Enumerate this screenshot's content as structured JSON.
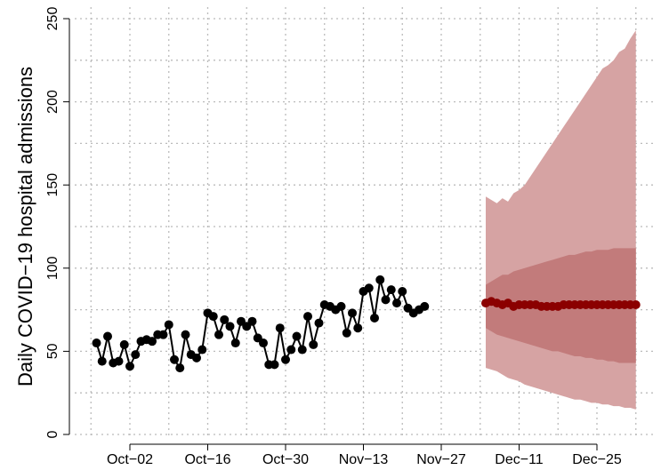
{
  "chart_data": {
    "type": "line",
    "y_label": "Daily COVID−19 hospital admissions",
    "categories": [
      null,
      null,
      null,
      null,
      null,
      null,
      "Oct−02",
      null,
      null,
      null,
      null,
      null,
      null,
      null,
      null,
      null,
      null,
      null,
      null,
      null,
      "Oct−16",
      null,
      null,
      null,
      null,
      null,
      null,
      null,
      null,
      null,
      null,
      null,
      null,
      null,
      "Oct−30",
      null,
      null,
      null,
      null,
      null,
      null,
      null,
      null,
      null,
      null,
      null,
      null,
      null,
      "Nov−13",
      null,
      null,
      null,
      null,
      null,
      null,
      null,
      null,
      null,
      null,
      null,
      null,
      null,
      "Nov−27",
      null,
      null,
      null,
      null,
      null,
      null,
      null,
      null,
      null,
      null,
      null,
      null,
      null,
      "Dec−11",
      null,
      null,
      null,
      null,
      null,
      null,
      null,
      null,
      null,
      null,
      null,
      null,
      null,
      "Dec−25",
      null,
      null,
      null,
      null,
      null,
      null,
      null
    ],
    "series": [
      {
        "color": "#000000",
        "values": [
          55,
          44,
          59,
          43,
          44,
          54,
          41,
          48,
          56,
          57,
          56,
          60,
          60,
          66,
          45,
          40,
          60,
          48,
          46,
          51,
          73,
          71,
          60,
          69,
          65,
          55,
          68,
          65,
          68,
          58,
          55,
          42,
          42,
          64,
          45,
          51,
          59,
          51,
          71,
          54,
          67,
          78,
          77,
          75,
          77,
          61,
          73,
          64,
          86,
          88,
          70,
          93,
          81,
          87,
          79,
          86,
          76,
          73,
          75,
          77,
          null,
          null,
          null,
          null,
          null,
          null,
          null,
          null,
          null,
          null,
          null,
          null,
          null,
          null,
          null,
          null,
          null,
          null,
          null,
          null,
          null,
          null,
          null,
          null,
          null,
          null,
          null,
          null,
          null,
          null,
          null,
          null,
          null,
          null,
          null,
          null,
          null,
          null
        ]
      },
      {
        "color": "#8b0000",
        "values": [
          null,
          null,
          null,
          null,
          null,
          null,
          null,
          null,
          null,
          null,
          null,
          null,
          null,
          null,
          null,
          null,
          null,
          null,
          null,
          null,
          null,
          null,
          null,
          null,
          null,
          null,
          null,
          null,
          null,
          null,
          null,
          null,
          null,
          null,
          null,
          null,
          null,
          null,
          null,
          null,
          null,
          null,
          null,
          null,
          null,
          null,
          null,
          null,
          null,
          null,
          null,
          null,
          null,
          null,
          null,
          null,
          null,
          null,
          null,
          null,
          null,
          null,
          null,
          null,
          null,
          null,
          null,
          null,
          null,
          null,
          79,
          80,
          79,
          78,
          79,
          77,
          78,
          78,
          78,
          78,
          77,
          77,
          77,
          77,
          78,
          78,
          78,
          78,
          78,
          78,
          78,
          78,
          78,
          78,
          78,
          78,
          78,
          78
        ]
      }
    ],
    "bands": [
      {
        "color": "#d6a3a3",
        "upper": [
          null,
          null,
          null,
          null,
          null,
          null,
          null,
          null,
          null,
          null,
          null,
          null,
          null,
          null,
          null,
          null,
          null,
          null,
          null,
          null,
          null,
          null,
          null,
          null,
          null,
          null,
          null,
          null,
          null,
          null,
          null,
          null,
          null,
          null,
          null,
          null,
          null,
          null,
          null,
          null,
          null,
          null,
          null,
          null,
          null,
          null,
          null,
          null,
          null,
          null,
          null,
          null,
          null,
          null,
          null,
          null,
          null,
          null,
          null,
          null,
          null,
          null,
          null,
          null,
          null,
          null,
          null,
          null,
          null,
          null,
          143,
          141,
          139,
          142,
          140,
          145,
          147,
          150,
          155,
          160,
          165,
          170,
          175,
          180,
          185,
          190,
          195,
          200,
          205,
          210,
          215,
          220,
          222,
          225,
          230,
          232,
          238,
          243
        ],
        "lower": [
          null,
          null,
          null,
          null,
          null,
          null,
          null,
          null,
          null,
          null,
          null,
          null,
          null,
          null,
          null,
          null,
          null,
          null,
          null,
          null,
          null,
          null,
          null,
          null,
          null,
          null,
          null,
          null,
          null,
          null,
          null,
          null,
          null,
          null,
          null,
          null,
          null,
          null,
          null,
          null,
          null,
          null,
          null,
          null,
          null,
          null,
          null,
          null,
          null,
          null,
          null,
          null,
          null,
          null,
          null,
          null,
          null,
          null,
          null,
          null,
          null,
          null,
          null,
          null,
          null,
          null,
          null,
          null,
          null,
          null,
          40,
          39,
          38,
          36,
          34,
          33,
          32,
          30,
          29,
          28,
          27,
          26,
          25,
          24,
          23,
          22,
          21,
          21,
          20,
          19,
          19,
          18,
          18,
          17,
          17,
          16,
          16,
          15
        ]
      },
      {
        "color": "#c27b7b",
        "upper": [
          null,
          null,
          null,
          null,
          null,
          null,
          null,
          null,
          null,
          null,
          null,
          null,
          null,
          null,
          null,
          null,
          null,
          null,
          null,
          null,
          null,
          null,
          null,
          null,
          null,
          null,
          null,
          null,
          null,
          null,
          null,
          null,
          null,
          null,
          null,
          null,
          null,
          null,
          null,
          null,
          null,
          null,
          null,
          null,
          null,
          null,
          null,
          null,
          null,
          null,
          null,
          null,
          null,
          null,
          null,
          null,
          null,
          null,
          null,
          null,
          null,
          null,
          null,
          null,
          null,
          null,
          null,
          null,
          null,
          null,
          90,
          92,
          94,
          96,
          96,
          98,
          99,
          100,
          101,
          102,
          103,
          104,
          105,
          106,
          107,
          108,
          108,
          109,
          110,
          110,
          111,
          111,
          111,
          112,
          112,
          112,
          112,
          112
        ],
        "lower": [
          null,
          null,
          null,
          null,
          null,
          null,
          null,
          null,
          null,
          null,
          null,
          null,
          null,
          null,
          null,
          null,
          null,
          null,
          null,
          null,
          null,
          null,
          null,
          null,
          null,
          null,
          null,
          null,
          null,
          null,
          null,
          null,
          null,
          null,
          null,
          null,
          null,
          null,
          null,
          null,
          null,
          null,
          null,
          null,
          null,
          null,
          null,
          null,
          null,
          null,
          null,
          null,
          null,
          null,
          null,
          null,
          null,
          null,
          null,
          null,
          null,
          null,
          null,
          null,
          null,
          null,
          null,
          null,
          null,
          null,
          64,
          62,
          60,
          59,
          58,
          57,
          56,
          55,
          54,
          53,
          52,
          51,
          50,
          50,
          49,
          48,
          47,
          47,
          46,
          46,
          45,
          45,
          44,
          44,
          43,
          43,
          43,
          43
        ]
      }
    ],
    "ylim": [
      0,
      250
    ],
    "yticks": [
      0,
      50,
      100,
      150,
      200,
      250
    ],
    "grid": true
  }
}
